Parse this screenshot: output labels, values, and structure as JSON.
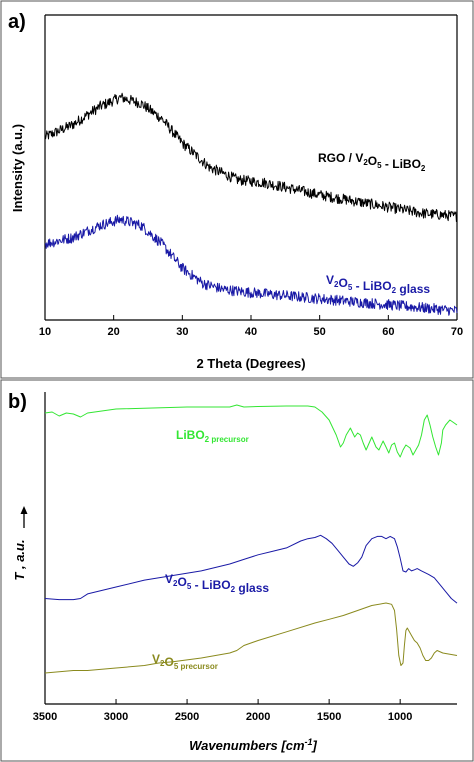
{
  "chart_data": [
    {
      "panel_label": "a)",
      "type": "line",
      "xlabel": "2 Theta (Degrees)",
      "ylabel": "Intensity (a.u.)",
      "xlim": [
        10,
        70
      ],
      "xticks": [
        10,
        20,
        30,
        40,
        50,
        60,
        70
      ],
      "yticks_shown": false,
      "noisy": true,
      "series": [
        {
          "label_parts": [
            {
              "t": "RGO / V"
            },
            {
              "t": "2",
              "sub": true
            },
            {
              "t": "O"
            },
            {
              "t": "5",
              "sub": true
            },
            {
              "t": " - LiBO"
            },
            {
              "t": "2",
              "sub": true
            }
          ],
          "color": "#000000",
          "x": [
            10,
            14,
            18,
            21,
            24,
            27,
            30,
            34,
            38,
            42,
            46,
            50,
            55,
            60,
            65,
            70
          ],
          "y": [
            0.6,
            0.64,
            0.7,
            0.73,
            0.71,
            0.66,
            0.58,
            0.5,
            0.46,
            0.45,
            0.43,
            0.41,
            0.39,
            0.37,
            0.35,
            0.34
          ]
        },
        {
          "label_parts": [
            {
              "t": "V"
            },
            {
              "t": "2",
              "sub": true
            },
            {
              "t": "O"
            },
            {
              "t": "5",
              "sub": true
            },
            {
              "t": " - LiBO"
            },
            {
              "t": "2",
              "sub": true
            },
            {
              "t": " glass"
            }
          ],
          "color": "#1a1aa6",
          "x": [
            10,
            14,
            18,
            21,
            24,
            27,
            30,
            33,
            36,
            40,
            45,
            50,
            55,
            60,
            65,
            70
          ],
          "y": [
            0.25,
            0.27,
            0.31,
            0.33,
            0.31,
            0.25,
            0.17,
            0.12,
            0.1,
            0.09,
            0.08,
            0.07,
            0.06,
            0.05,
            0.04,
            0.03
          ]
        }
      ]
    },
    {
      "panel_label": "b)",
      "type": "line",
      "xlabel": "Wavenumbers [cm",
      "xlabel_sup": "-1",
      "xlabel_end": "]",
      "ylabel": "T , a.u.",
      "xlim": [
        3500,
        600
      ],
      "xreversed": true,
      "xticks": [
        3500,
        3000,
        2500,
        2000,
        1500,
        1000
      ],
      "yticks_shown": false,
      "series": [
        {
          "label_parts": [
            {
              "t": "LiBO"
            },
            {
              "t": "2 precursor",
              "sub": true
            }
          ],
          "color": "#33e633",
          "x": [
            3500,
            3450,
            3400,
            3350,
            3300,
            3250,
            3200,
            3000,
            2500,
            2200,
            2150,
            2100,
            2000,
            1800,
            1650,
            1600,
            1550,
            1500,
            1450,
            1420,
            1400,
            1380,
            1350,
            1320,
            1300,
            1280,
            1260,
            1240,
            1200,
            1170,
            1150,
            1120,
            1100,
            1080,
            1060,
            1040,
            1020,
            1000,
            980,
            960,
            930,
            910,
            890,
            870,
            850,
            830,
            810,
            790,
            770,
            750,
            730,
            710,
            700,
            680,
            650,
            620,
            600
          ],
          "y": [
            0.92,
            0.93,
            0.89,
            0.92,
            0.91,
            0.88,
            0.92,
            0.96,
            0.98,
            0.98,
            1.0,
            0.98,
            0.985,
            0.99,
            0.99,
            0.98,
            0.93,
            0.85,
            0.7,
            0.58,
            0.62,
            0.7,
            0.77,
            0.68,
            0.72,
            0.7,
            0.62,
            0.55,
            0.68,
            0.58,
            0.55,
            0.64,
            0.58,
            0.52,
            0.6,
            0.62,
            0.53,
            0.48,
            0.55,
            0.6,
            0.57,
            0.5,
            0.55,
            0.6,
            0.7,
            0.85,
            0.9,
            0.8,
            0.68,
            0.58,
            0.5,
            0.62,
            0.75,
            0.8,
            0.85,
            0.82,
            0.8
          ]
        },
        {
          "label_parts": [
            {
              "t": "V"
            },
            {
              "t": "2",
              "sub": true
            },
            {
              "t": "O"
            },
            {
              "t": "5",
              "sub": true
            },
            {
              "t": " - LiBO"
            },
            {
              "t": "2",
              "sub": true
            },
            {
              "t": " glass"
            }
          ],
          "color": "#1a1aa6",
          "x": [
            3500,
            3400,
            3300,
            3250,
            3200,
            3000,
            2800,
            2600,
            2400,
            2200,
            2100,
            2000,
            1900,
            1800,
            1700,
            1650,
            1600,
            1560,
            1520,
            1480,
            1440,
            1400,
            1360,
            1330,
            1300,
            1270,
            1240,
            1200,
            1160,
            1130,
            1100,
            1070,
            1040,
            1020,
            1000,
            980,
            960,
            940,
            920,
            900,
            880,
            850,
            800,
            760,
            720,
            680,
            640,
            600
          ],
          "y": [
            0.1,
            0.09,
            0.09,
            0.1,
            0.14,
            0.2,
            0.26,
            0.3,
            0.34,
            0.4,
            0.44,
            0.48,
            0.51,
            0.54,
            0.6,
            0.62,
            0.63,
            0.65,
            0.62,
            0.58,
            0.52,
            0.46,
            0.4,
            0.38,
            0.41,
            0.46,
            0.56,
            0.62,
            0.64,
            0.64,
            0.62,
            0.64,
            0.62,
            0.55,
            0.45,
            0.34,
            0.33,
            0.36,
            0.34,
            0.35,
            0.36,
            0.34,
            0.31,
            0.28,
            0.22,
            0.16,
            0.1,
            0.06
          ]
        },
        {
          "label_parts": [
            {
              "t": "V"
            },
            {
              "t": "2",
              "sub": true
            },
            {
              "t": "O"
            },
            {
              "t": "5 precursor",
              "sub": true
            }
          ],
          "color": "#8a8a1e",
          "x": [
            3500,
            3400,
            3300,
            3200,
            3000,
            2800,
            2700,
            2600,
            2400,
            2300,
            2200,
            2150,
            2100,
            2000,
            1800,
            1600,
            1500,
            1400,
            1300,
            1200,
            1100,
            1060,
            1040,
            1025,
            1010,
            995,
            980,
            970,
            960,
            950,
            940,
            920,
            900,
            880,
            860,
            840,
            820,
            800,
            780,
            760,
            740,
            700,
            650,
            600
          ],
          "y": [
            0.0,
            0.01,
            0.02,
            0.02,
            0.04,
            0.06,
            0.08,
            0.09,
            0.12,
            0.14,
            0.16,
            0.18,
            0.22,
            0.26,
            0.33,
            0.4,
            0.43,
            0.46,
            0.5,
            0.54,
            0.56,
            0.55,
            0.5,
            0.35,
            0.14,
            0.06,
            0.08,
            0.22,
            0.34,
            0.36,
            0.34,
            0.3,
            0.26,
            0.24,
            0.2,
            0.14,
            0.1,
            0.1,
            0.12,
            0.16,
            0.18,
            0.16,
            0.15,
            0.14
          ]
        }
      ]
    }
  ]
}
